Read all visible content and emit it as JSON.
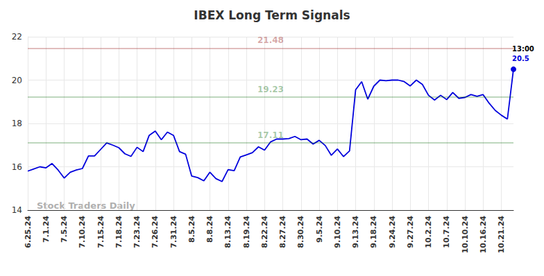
{
  "chart_data": {
    "type": "line",
    "title": "IBEX Long Term Signals",
    "watermark": "Stock Traders Daily",
    "categories": [
      "6.25.24",
      null,
      null,
      "7.1.24",
      null,
      null,
      "7.5.24",
      null,
      null,
      "7.10.24",
      null,
      null,
      "7.15.24",
      null,
      null,
      "7.18.24",
      null,
      null,
      "7.23.24",
      null,
      null,
      "7.26.24",
      null,
      null,
      "7.31.24",
      null,
      null,
      "8.5.24",
      null,
      null,
      "8.8.24",
      null,
      null,
      "8.13.24",
      null,
      null,
      "8.19.24",
      null,
      null,
      "8.22.24",
      null,
      null,
      "8.27.24",
      null,
      null,
      "8.30.24",
      null,
      null,
      "9.5.24",
      null,
      null,
      "9.10.24",
      null,
      null,
      "9.13.24",
      null,
      null,
      "9.18.24",
      null,
      null,
      "9.24.24",
      null,
      null,
      "9.27.24",
      null,
      null,
      "10.2.24",
      null,
      null,
      "10.7.24",
      null,
      null,
      "10.10.24",
      null,
      null,
      "10.16.24",
      null,
      null,
      "10.21.24",
      null,
      null
    ],
    "series": [
      {
        "name": "IBEX",
        "color": "#0000dd",
        "values": [
          15.8,
          15.9,
          16.0,
          15.95,
          16.15,
          15.85,
          15.48,
          15.75,
          15.85,
          15.92,
          16.5,
          16.5,
          16.8,
          17.1,
          17.0,
          16.88,
          16.6,
          16.48,
          16.9,
          16.7,
          17.45,
          17.65,
          17.25,
          17.6,
          17.45,
          16.7,
          16.58,
          15.57,
          15.5,
          15.35,
          15.75,
          15.45,
          15.32,
          15.87,
          15.82,
          16.45,
          16.55,
          16.65,
          16.92,
          16.77,
          17.15,
          17.28,
          17.28,
          17.3,
          17.4,
          17.25,
          17.28,
          17.05,
          17.22,
          16.98,
          16.53,
          16.82,
          16.47,
          16.73,
          19.55,
          19.93,
          19.12,
          19.72,
          20.0,
          19.97,
          20.0,
          20.0,
          19.93,
          19.73,
          20.0,
          19.8,
          19.3,
          19.08,
          19.3,
          19.1,
          19.43,
          19.16,
          19.2,
          19.33,
          19.25,
          19.33,
          18.93,
          18.6,
          18.38,
          18.2,
          20.5
        ],
        "value_labels": [
          null,
          null,
          null,
          null,
          null,
          null,
          null,
          null,
          null,
          null,
          null,
          null,
          null,
          null,
          null,
          null,
          null,
          null,
          null,
          null,
          null,
          null,
          null,
          null,
          null,
          null,
          null,
          null,
          null,
          null,
          null,
          null,
          null,
          null,
          null,
          null,
          null,
          null,
          null,
          null,
          null,
          null,
          null,
          null,
          null,
          null,
          null,
          null,
          null,
          null,
          null,
          null,
          null,
          null,
          null,
          null,
          null,
          null,
          null,
          null,
          null,
          null,
          null,
          null,
          null,
          null,
          null,
          null,
          null,
          null,
          null,
          null,
          null,
          null,
          null,
          null,
          null,
          null,
          null,
          null,
          "20.5"
        ],
        "point_annotations": [
          null,
          null,
          null,
          null,
          null,
          null,
          null,
          null,
          null,
          null,
          null,
          null,
          null,
          null,
          null,
          null,
          null,
          null,
          null,
          null,
          null,
          null,
          null,
          null,
          null,
          null,
          null,
          null,
          null,
          null,
          null,
          null,
          null,
          null,
          null,
          null,
          null,
          null,
          null,
          null,
          null,
          null,
          null,
          null,
          null,
          null,
          null,
          null,
          null,
          null,
          null,
          null,
          null,
          null,
          null,
          null,
          null,
          null,
          null,
          null,
          null,
          null,
          null,
          null,
          null,
          null,
          null,
          null,
          null,
          null,
          null,
          null,
          null,
          null,
          null,
          null,
          null,
          null,
          null,
          null,
          "13:00"
        ]
      }
    ],
    "levels": [
      {
        "value": 21.48,
        "label": "21.48",
        "color": "#8b0000"
      },
      {
        "value": 19.23,
        "label": "19.23",
        "color": "#006400"
      },
      {
        "value": 17.11,
        "label": "17.11",
        "color": "#006400"
      }
    ],
    "ylim": [
      14,
      22
    ],
    "yticks": [
      14,
      16,
      18,
      20,
      22
    ],
    "grid": true
  }
}
